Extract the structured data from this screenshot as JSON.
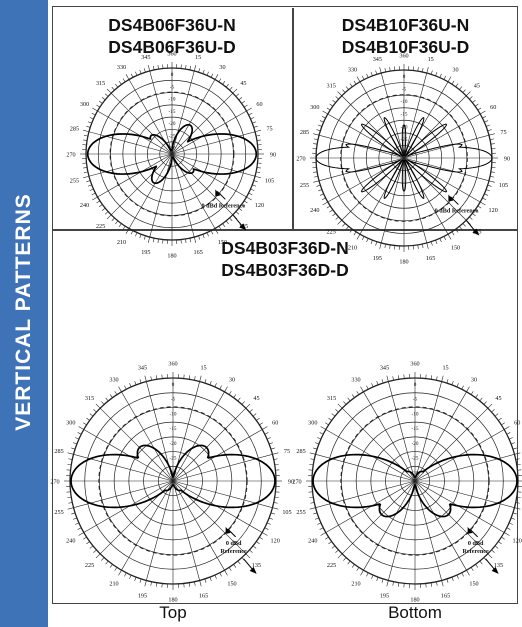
{
  "side_tab": {
    "label": "VERTICAL PATTERNS",
    "color": "#3f73b8"
  },
  "charts": [
    {
      "id": "p1",
      "title_line1": "DS4B06F36U-N",
      "title_line2": "DS4B06F36U-D",
      "caption": "",
      "reference_label": "0 dBd Reference",
      "pattern": "p1"
    },
    {
      "id": "p2",
      "title_line1": "DS4B10F36U-N",
      "title_line2": "DS4B10F36U-D",
      "caption": "",
      "reference_label": "0 dBd Reference",
      "pattern": "p2"
    },
    {
      "id": "p3",
      "title_line1": "DS4B03F36D-N",
      "title_line2": "DS4B03F36D-D",
      "caption": "Top",
      "reference_label": "0 dBd Reference",
      "pattern": "p3"
    },
    {
      "id": "p4",
      "caption": "Bottom",
      "reference_label": "0 dBd Reference",
      "pattern": "p4"
    }
  ],
  "angle_labels": [
    "360",
    "15",
    "30",
    "45",
    "60",
    "75",
    "90",
    "105",
    "120",
    "135",
    "150",
    "165",
    "180",
    "195",
    "210",
    "225",
    "240",
    "255",
    "270",
    "285",
    "300",
    "315",
    "330",
    "345"
  ],
  "ring_labels": [
    "0",
    "-5",
    "-10",
    "-15",
    "-20",
    "-25",
    "-30"
  ],
  "chart_data": {
    "type": "polar",
    "units": "dB",
    "angle_ticks_deg": [
      0,
      15,
      30,
      45,
      60,
      75,
      90,
      105,
      120,
      135,
      150,
      165,
      180,
      195,
      210,
      225,
      240,
      255,
      270,
      285,
      300,
      315,
      330,
      345
    ],
    "radial_ticks_db": [
      0,
      -5,
      -10,
      -15,
      -20,
      -25,
      -30
    ]
  }
}
